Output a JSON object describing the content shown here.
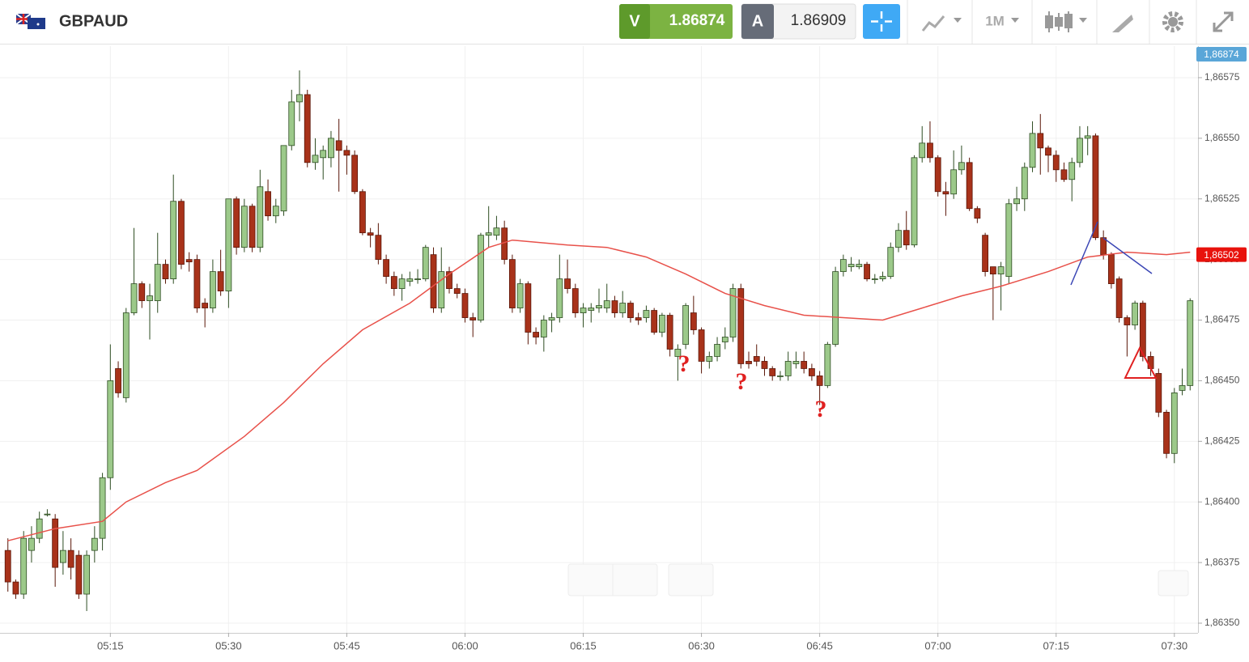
{
  "header": {
    "symbol": "GBPAUD",
    "sell": {
      "letter": "V",
      "price": "1.86874"
    },
    "buy": {
      "letter": "A",
      "price": "1.86909"
    },
    "timeframe": "1M"
  },
  "chart_data": {
    "type": "candlestick",
    "x": [
      "05:02",
      "05:03",
      "05:04",
      "05:05",
      "05:06",
      "05:07",
      "05:08",
      "05:09",
      "05:10",
      "05:11",
      "05:12",
      "05:13",
      "05:14",
      "05:15",
      "05:16",
      "05:17",
      "05:18",
      "05:19",
      "05:20",
      "05:21",
      "05:22",
      "05:23",
      "05:24",
      "05:25",
      "05:26",
      "05:27",
      "05:28",
      "05:29",
      "05:30",
      "05:31",
      "05:32",
      "05:33",
      "05:34",
      "05:35",
      "05:36",
      "05:37",
      "05:38",
      "05:39",
      "05:40",
      "05:41",
      "05:42",
      "05:43",
      "05:44",
      "05:45",
      "05:46",
      "05:47",
      "05:48",
      "05:49",
      "05:50",
      "05:51",
      "05:52",
      "05:53",
      "05:54",
      "05:55",
      "05:56",
      "05:57",
      "05:58",
      "05:59",
      "06:00",
      "06:01",
      "06:02",
      "06:03",
      "06:04",
      "06:05",
      "06:06",
      "06:07",
      "06:08",
      "06:09",
      "06:10",
      "06:11",
      "06:12",
      "06:13",
      "06:14",
      "06:15",
      "06:16",
      "06:17",
      "06:18",
      "06:19",
      "06:20",
      "06:21",
      "06:22",
      "06:23",
      "06:24",
      "06:25",
      "06:26",
      "06:27",
      "06:28",
      "06:29",
      "06:30",
      "06:31",
      "06:32",
      "06:33",
      "06:34",
      "06:35",
      "06:36",
      "06:37",
      "06:38",
      "06:39",
      "06:40",
      "06:41",
      "06:42",
      "06:43",
      "06:44",
      "06:45",
      "06:46",
      "06:47",
      "06:48",
      "06:49",
      "06:50",
      "06:51",
      "06:52",
      "06:53",
      "06:54",
      "06:55",
      "06:56",
      "06:57",
      "06:58",
      "06:59",
      "07:00",
      "07:01",
      "07:02",
      "07:03",
      "07:04",
      "07:05",
      "07:06",
      "07:07",
      "07:08",
      "07:09",
      "07:10",
      "07:11",
      "07:12",
      "07:13",
      "07:14",
      "07:15",
      "07:16",
      "07:17",
      "07:18",
      "07:19",
      "07:20",
      "07:21",
      "07:22",
      "07:23",
      "07:24",
      "07:25",
      "07:26",
      "07:27",
      "07:28",
      "07:29",
      "07:30",
      "07:31",
      "07:32"
    ],
    "open": [
      1.8638,
      1.86367,
      1.86362,
      1.8638,
      1.86385,
      1.86395,
      1.86393,
      1.86375,
      1.8638,
      1.86378,
      1.86362,
      1.8638,
      1.86385,
      1.8641,
      1.86455,
      1.86443,
      1.86478,
      1.8649,
      1.86483,
      1.86483,
      1.86498,
      1.86492,
      1.86524,
      1.865,
      1.865,
      1.86482,
      1.8648,
      1.86495,
      1.86487,
      1.86525,
      1.86505,
      1.86522,
      1.86505,
      1.86528,
      1.86518,
      1.8652,
      1.86547,
      1.86565,
      1.86568,
      1.8654,
      1.86542,
      1.86542,
      1.86549,
      1.86545,
      1.86543,
      1.86528,
      1.86511,
      1.8651,
      1.865,
      1.86493,
      1.86488,
      1.86491,
      1.86492,
      1.86492,
      1.86502,
      1.8648,
      1.86495,
      1.86488,
      1.86486,
      1.86476,
      1.86475,
      1.8651,
      1.8651,
      1.86513,
      1.865,
      1.8648,
      1.8649,
      1.8647,
      1.86468,
      1.86475,
      1.86476,
      1.86492,
      1.86488,
      1.86478,
      1.86479,
      1.8648,
      1.8648,
      1.86483,
      1.86478,
      1.86482,
      1.86476,
      1.86476,
      1.86479,
      1.8647,
      1.86477,
      1.8646,
      1.86465,
      1.86478,
      1.86471,
      1.86458,
      1.8646,
      1.86466,
      1.86468,
      1.86488,
      1.86458,
      1.8646,
      1.86458,
      1.86455,
      1.86452,
      1.86452,
      1.86457,
      1.86458,
      1.86455,
      1.86452,
      1.86448,
      1.86465,
      1.86495,
      1.86497,
      1.86497,
      1.86498,
      1.86492,
      1.86492,
      1.86493,
      1.86505,
      1.86512,
      1.86506,
      1.86542,
      1.86548,
      1.86542,
      1.86528,
      1.86527,
      1.86537,
      1.8654,
      1.86521,
      1.8651,
      1.86497,
      1.86494,
      1.86493,
      1.86523,
      1.86525,
      1.86538,
      1.86552,
      1.86546,
      1.86543,
      1.86537,
      1.86533,
      1.8654,
      1.8655,
      1.86551,
      1.86509,
      1.86502,
      1.86492,
      1.86476,
      1.86473,
      1.86482,
      1.8646,
      1.86453,
      1.86437,
      1.8642,
      1.86446,
      1.86448
    ],
    "high": [
      1.86385,
      1.86368,
      1.86388,
      1.8639,
      1.86396,
      1.86397,
      1.86395,
      1.86388,
      1.86385,
      1.8638,
      1.8638,
      1.8639,
      1.86412,
      1.86465,
      1.86458,
      1.8648,
      1.86513,
      1.86491,
      1.8649,
      1.86511,
      1.865,
      1.86535,
      1.86525,
      1.86503,
      1.86502,
      1.86484,
      1.865,
      1.86504,
      1.86525,
      1.86526,
      1.86525,
      1.86523,
      1.86537,
      1.86533,
      1.86525,
      1.86547,
      1.8657,
      1.86578,
      1.8657,
      1.8655,
      1.86547,
      1.86553,
      1.86558,
      1.86547,
      1.86545,
      1.86529,
      1.86513,
      1.86515,
      1.86502,
      1.86495,
      1.86494,
      1.86495,
      1.86496,
      1.86506,
      1.86505,
      1.86505,
      1.86497,
      1.8649,
      1.86488,
      1.86478,
      1.86511,
      1.86522,
      1.86518,
      1.86516,
      1.86502,
      1.86492,
      1.86491,
      1.86472,
      1.86477,
      1.86478,
      1.86502,
      1.865,
      1.8649,
      1.86482,
      1.86482,
      1.86488,
      1.8649,
      1.86485,
      1.86487,
      1.86483,
      1.86478,
      1.86481,
      1.8648,
      1.86478,
      1.86478,
      1.86465,
      1.86482,
      1.86485,
      1.86472,
      1.86462,
      1.86468,
      1.86472,
      1.8649,
      1.8649,
      1.86462,
      1.86465,
      1.8646,
      1.86456,
      1.86454,
      1.86462,
      1.86462,
      1.86462,
      1.86457,
      1.86454,
      1.86466,
      1.86497,
      1.86502,
      1.86501,
      1.865,
      1.86499,
      1.86494,
      1.86495,
      1.86507,
      1.86515,
      1.8652,
      1.86543,
      1.86555,
      1.86557,
      1.86543,
      1.86532,
      1.86545,
      1.86547,
      1.86542,
      1.86522,
      1.86511,
      1.86497,
      1.86499,
      1.86525,
      1.8653,
      1.8654,
      1.86557,
      1.8656,
      1.86547,
      1.86545,
      1.8654,
      1.86542,
      1.86555,
      1.86555,
      1.86552,
      1.86512,
      1.86503,
      1.86493,
      1.86477,
      1.86483,
      1.86483,
      1.86462,
      1.86455,
      1.86438,
      1.86447,
      1.86455,
      1.86484
    ],
    "low": [
      1.86363,
      1.8636,
      1.8636,
      1.86375,
      1.86383,
      1.86394,
      1.86365,
      1.8637,
      1.86368,
      1.8636,
      1.86355,
      1.86375,
      1.8638,
      1.86405,
      1.86443,
      1.86441,
      1.86477,
      1.8648,
      1.86467,
      1.86478,
      1.8649,
      1.8649,
      1.86496,
      1.86495,
      1.86478,
      1.86472,
      1.86478,
      1.86485,
      1.8648,
      1.86502,
      1.86503,
      1.86503,
      1.86503,
      1.86516,
      1.86515,
      1.86518,
      1.86545,
      1.86557,
      1.86538,
      1.86537,
      1.86533,
      1.86538,
      1.86528,
      1.86535,
      1.86527,
      1.8651,
      1.86505,
      1.86498,
      1.8649,
      1.86485,
      1.86483,
      1.86489,
      1.8649,
      1.86491,
      1.86478,
      1.86478,
      1.86486,
      1.86484,
      1.86474,
      1.86468,
      1.86474,
      1.86505,
      1.86508,
      1.86498,
      1.86478,
      1.86478,
      1.86465,
      1.86465,
      1.86462,
      1.8647,
      1.86474,
      1.86486,
      1.86476,
      1.86472,
      1.86474,
      1.86478,
      1.86478,
      1.86476,
      1.86476,
      1.86474,
      1.86473,
      1.86474,
      1.86469,
      1.86468,
      1.8646,
      1.8645,
      1.86463,
      1.86469,
      1.86453,
      1.86455,
      1.86458,
      1.86463,
      1.86466,
      1.86455,
      1.86455,
      1.86456,
      1.86452,
      1.8645,
      1.8645,
      1.8645,
      1.86455,
      1.86453,
      1.8645,
      1.8644,
      1.86447,
      1.86464,
      1.86493,
      1.86495,
      1.86496,
      1.86491,
      1.8649,
      1.86491,
      1.86492,
      1.86503,
      1.86504,
      1.86505,
      1.8654,
      1.8654,
      1.86526,
      1.86518,
      1.86525,
      1.86535,
      1.8652,
      1.86515,
      1.86493,
      1.86475,
      1.86479,
      1.8649,
      1.8652,
      1.8652,
      1.86536,
      1.86535,
      1.86536,
      1.86532,
      1.86532,
      1.86524,
      1.86538,
      1.86543,
      1.86508,
      1.865,
      1.86488,
      1.86474,
      1.8646,
      1.86471,
      1.86458,
      1.86452,
      1.86435,
      1.86418,
      1.86416,
      1.86444,
      1.86446
    ],
    "close": [
      1.86367,
      1.86362,
      1.86385,
      1.86385,
      1.86393,
      1.86395,
      1.86373,
      1.8638,
      1.86373,
      1.86362,
      1.86378,
      1.86385,
      1.8641,
      1.8645,
      1.86445,
      1.86478,
      1.8649,
      1.86483,
      1.86485,
      1.86498,
      1.86492,
      1.86524,
      1.86498,
      1.86499,
      1.8648,
      1.8648,
      1.86495,
      1.86487,
      1.86525,
      1.86505,
      1.86522,
      1.86505,
      1.8653,
      1.86518,
      1.86522,
      1.86547,
      1.86565,
      1.86568,
      1.8654,
      1.86543,
      1.86545,
      1.8655,
      1.86545,
      1.86543,
      1.86528,
      1.86511,
      1.8651,
      1.865,
      1.86493,
      1.86488,
      1.86492,
      1.86492,
      1.86492,
      1.86505,
      1.8648,
      1.86495,
      1.86488,
      1.86486,
      1.86476,
      1.86475,
      1.8651,
      1.86511,
      1.86513,
      1.865,
      1.8648,
      1.8649,
      1.8647,
      1.86468,
      1.86475,
      1.86476,
      1.86492,
      1.86488,
      1.86478,
      1.8648,
      1.8648,
      1.86481,
      1.86483,
      1.86478,
      1.86482,
      1.86476,
      1.86475,
      1.86479,
      1.8647,
      1.86477,
      1.86463,
      1.86463,
      1.86481,
      1.86471,
      1.86458,
      1.8646,
      1.86465,
      1.86468,
      1.86488,
      1.86457,
      1.86457,
      1.86458,
      1.86455,
      1.86452,
      1.86452,
      1.86458,
      1.86458,
      1.86455,
      1.86452,
      1.86448,
      1.86465,
      1.86495,
      1.865,
      1.86498,
      1.86498,
      1.86492,
      1.86492,
      1.86493,
      1.86505,
      1.86512,
      1.86506,
      1.86542,
      1.86548,
      1.86542,
      1.86528,
      1.86527,
      1.86537,
      1.8654,
      1.86521,
      1.86517,
      1.86495,
      1.86494,
      1.86497,
      1.86523,
      1.86525,
      1.86538,
      1.86552,
      1.86546,
      1.86543,
      1.86537,
      1.86533,
      1.8654,
      1.8655,
      1.86551,
      1.86509,
      1.86502,
      1.8649,
      1.86476,
      1.86473,
      1.86482,
      1.8646,
      1.86455,
      1.86437,
      1.8642,
      1.86445,
      1.86448,
      1.86483
    ],
    "up_color": "#9cc98a",
    "down_color": "#a8321a",
    "moving_average": {
      "color": "#e8514a",
      "x": [
        "05:02",
        "05:08",
        "05:14",
        "05:17",
        "05:22",
        "05:26",
        "05:32",
        "05:37",
        "05:42",
        "05:47",
        "05:53",
        "05:58",
        "06:03",
        "06:06",
        "06:13",
        "06:18",
        "06:23",
        "06:28",
        "06:33",
        "06:38",
        "06:43",
        "06:48",
        "06:53",
        "06:58",
        "07:03",
        "07:08",
        "07:14",
        "07:19",
        "07:24",
        "07:29",
        "07:32"
      ],
      "values": [
        1.86384,
        1.86389,
        1.86392,
        1.864,
        1.86408,
        1.86413,
        1.86427,
        1.86441,
        1.86457,
        1.86471,
        1.86482,
        1.86494,
        1.86505,
        1.86508,
        1.86506,
        1.86505,
        1.86501,
        1.86494,
        1.86486,
        1.86481,
        1.86477,
        1.86476,
        1.86475,
        1.8648,
        1.86485,
        1.86489,
        1.86495,
        1.86501,
        1.86503,
        1.86502,
        1.86503
      ]
    },
    "xlim": [
      "05:01",
      "07:33"
    ],
    "xticks": [
      "05:15",
      "05:30",
      "05:45",
      "06:00",
      "06:15",
      "06:30",
      "06:45",
      "07:00",
      "07:15",
      "07:30"
    ],
    "ylim": [
      1.86346,
      1.86588
    ],
    "yticks": [
      {
        "value": 1.8635,
        "label": "1,86350"
      },
      {
        "value": 1.86375,
        "label": "1,86375"
      },
      {
        "value": 1.864,
        "label": "1,86400"
      },
      {
        "value": 1.86425,
        "label": "1,86425"
      },
      {
        "value": 1.8645,
        "label": "1,86450"
      },
      {
        "value": 1.86475,
        "label": "1,86475"
      },
      {
        "value": 1.865,
        "label": "1,86500"
      },
      {
        "value": 1.86525,
        "label": "1,86525"
      },
      {
        "value": 1.8655,
        "label": "1,86550"
      },
      {
        "value": 1.86575,
        "label": "1,86575"
      }
    ],
    "grid": true,
    "price_tags": [
      {
        "value": 1.86874,
        "label": "1,86874",
        "color": "#5aa6d8"
      },
      {
        "value": 1.86502,
        "label": "1,86502",
        "color": "#e8120c"
      }
    ],
    "annotations": [
      "?",
      "?",
      "?"
    ]
  }
}
